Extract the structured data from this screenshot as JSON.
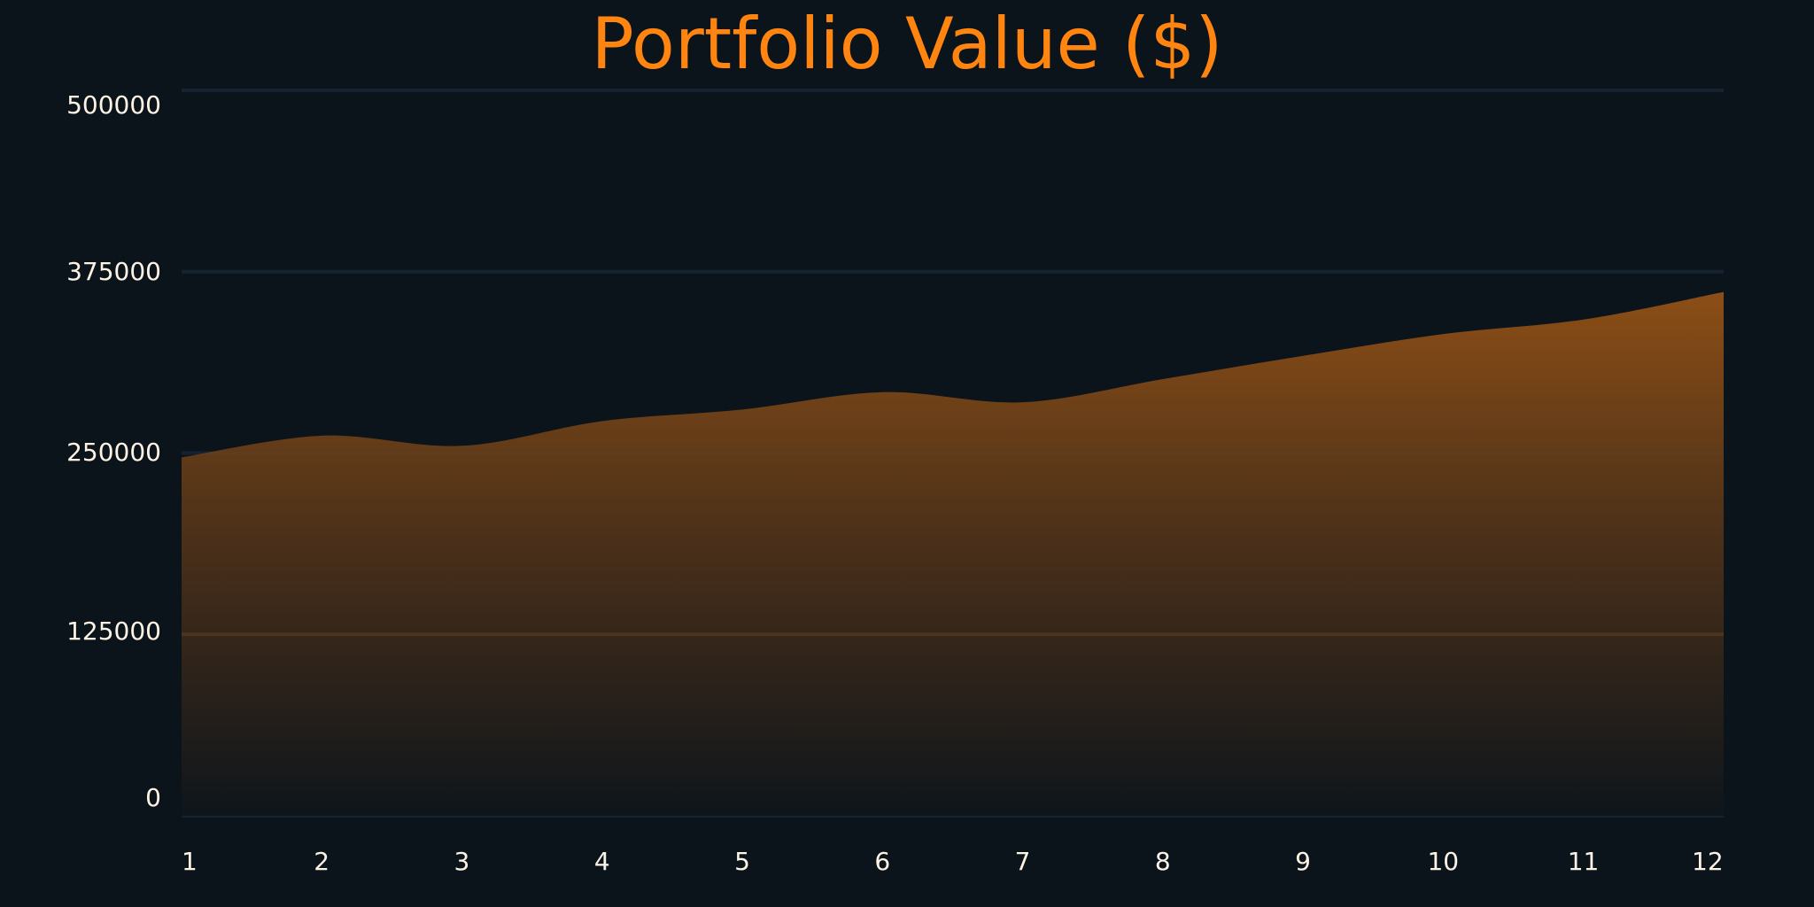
{
  "chart_data": {
    "type": "area",
    "title": "Portfolio Value ($)",
    "xlabel": "",
    "ylabel": "",
    "categories": [
      "1",
      "2",
      "3",
      "4",
      "5",
      "6",
      "7",
      "8",
      "9",
      "10",
      "11",
      "12"
    ],
    "x": [
      1,
      2,
      3,
      4,
      5,
      6,
      7,
      8,
      9,
      10,
      11,
      12
    ],
    "series": [
      {
        "name": "Portfolio Value ($)",
        "values": [
          247000,
          262000,
          255000,
          272000,
          280000,
          292000,
          285000,
          301000,
          317000,
          332000,
          342000,
          361000
        ]
      }
    ],
    "ylim": [
      0,
      500000
    ],
    "yticks": [
      0,
      125000,
      250000,
      375000,
      500000
    ],
    "ytick_labels": [
      "0",
      "125000",
      "250000",
      "375000",
      "500000"
    ],
    "xtick_labels": [
      "1",
      "2",
      "3",
      "4",
      "5",
      "6",
      "7",
      "8",
      "9",
      "10",
      "11",
      "12"
    ],
    "grid": true,
    "legend": "none",
    "curve": "smooth"
  },
  "colors": {
    "background": "#0c141b",
    "title": "#ff8410",
    "area_top": "#8c4e16",
    "area_bottom": "#0e151b",
    "gridline": "#152231",
    "gridline_over_fill": "#5f4026",
    "tick_label": "#fdf3e5"
  }
}
